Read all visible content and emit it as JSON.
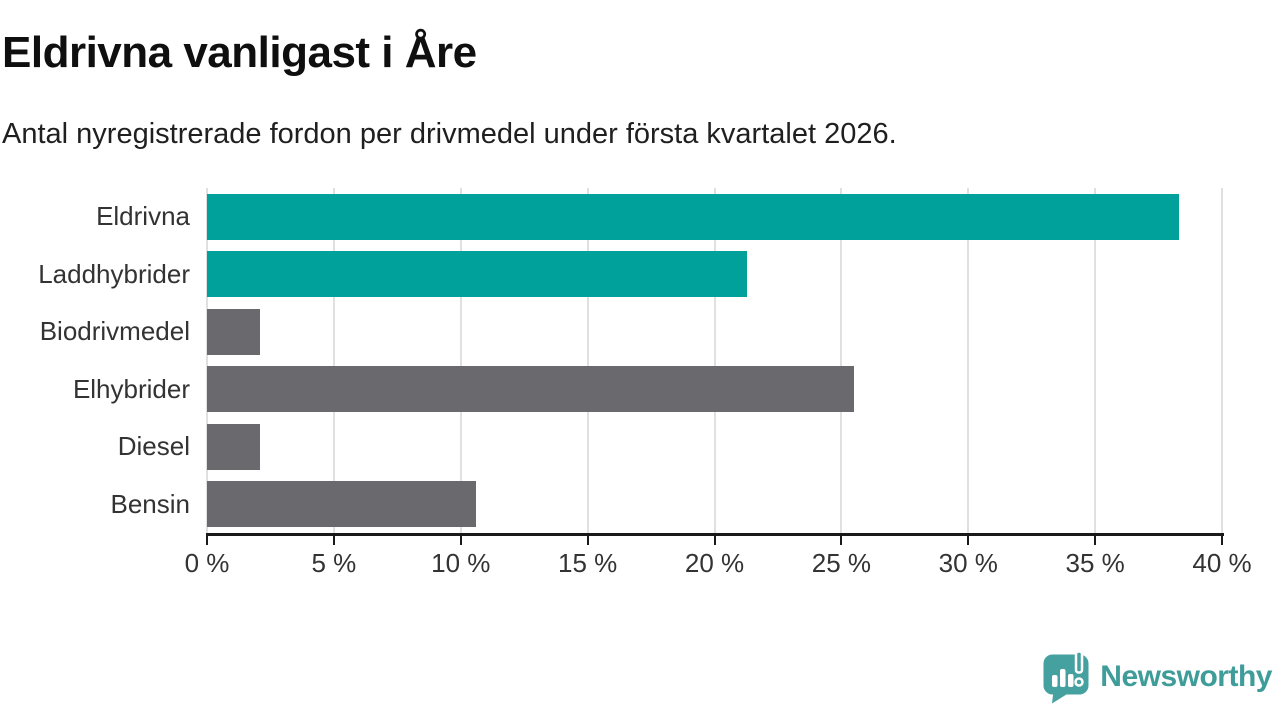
{
  "header": {
    "title": "Eldrivna vanligast i Åre",
    "subtitle": "Antal nyregistrerade fordon per drivmedel under första kvartalet 2026."
  },
  "chart_data": {
    "type": "bar",
    "orientation": "horizontal",
    "title": "Eldrivna vanligast i Åre",
    "subtitle": "Antal nyregistrerade fordon per drivmedel under första kvartalet 2026.",
    "categories": [
      "Eldrivna",
      "Laddhybrider",
      "Biodrivmedel",
      "Elhybrider",
      "Diesel",
      "Bensin"
    ],
    "values": [
      38.3,
      21.3,
      2.1,
      25.5,
      2.1,
      10.6
    ],
    "unit": "%",
    "bar_colors": [
      "#00a19a",
      "#00a19a",
      "#6a696e",
      "#6a696e",
      "#6a696e",
      "#6a696e"
    ],
    "xlabel": "",
    "ylabel": "",
    "xlim": [
      0,
      40
    ],
    "x_ticks": [
      0,
      5,
      10,
      15,
      20,
      25,
      30,
      35,
      40
    ],
    "x_tick_labels": [
      "0 %",
      "5 %",
      "10 %",
      "15 %",
      "20 %",
      "25 %",
      "30 %",
      "35 %",
      "40 %"
    ],
    "grid": true,
    "legend": "none"
  },
  "footer": {
    "brand": "Newsworthy"
  },
  "colors": {
    "accent_teal": "#00a19a",
    "neutral_gray": "#6a696e",
    "gridline": "#e0e0e0",
    "axis": "#1a1a1a",
    "label_text": "#333333",
    "logo_teal": "#45a0a0",
    "wordmark_teal": "#3e9c99"
  }
}
